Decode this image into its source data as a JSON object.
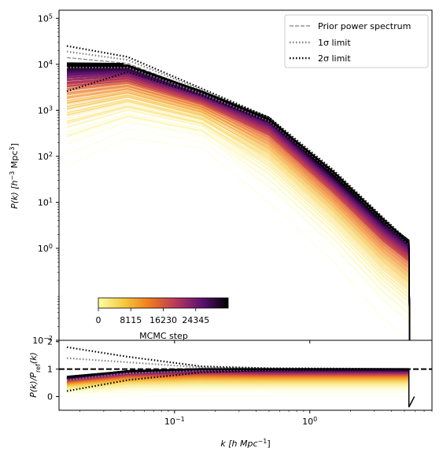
{
  "chart_data": [
    {
      "panel": "top",
      "type": "line",
      "ylabel_main": "P(k) [h",
      "ylabel_exp": "−3",
      "ylabel_tail": " Mpc",
      "ylabel_exp2": "3",
      "ylabel_close": "]",
      "yscale": "log",
      "xscale": "log",
      "xlim": [
        0.014,
        8.0
      ],
      "ylim": [
        0.01,
        150000
      ],
      "yticks": [
        {
          "value": 100000,
          "exp": "5"
        },
        {
          "value": 10000,
          "exp": "4"
        },
        {
          "value": 1000,
          "exp": "3"
        },
        {
          "value": 100,
          "exp": "2"
        },
        {
          "value": 10,
          "exp": "1"
        },
        {
          "value": 1,
          "exp": "0"
        },
        {
          "value": 0.01,
          "exp": "−2"
        }
      ],
      "k_grid": [
        0.016,
        0.045,
        0.16,
        0.5,
        1.5,
        3.5,
        5.4
      ],
      "samples_lo": [
        60,
        250,
        150,
        10,
        0.5,
        0.03,
        0.01
      ],
      "samples_hi": [
        9500,
        9300,
        2600,
        700,
        40,
        4,
        1.5
      ],
      "sample_count": 170,
      "series": [
        {
          "name": "Prior power spectrum",
          "style": "dashed",
          "color": "#808080",
          "x": [
            0.016,
            0.045,
            0.16,
            0.5,
            1.5,
            3.5,
            5.4
          ],
          "y": [
            14000,
            10500,
            2500,
            620,
            45,
            4.2,
            1.3
          ]
        },
        {
          "name": "1σ limit",
          "style": "dotted",
          "color": "#808080",
          "upper": [
            19000,
            12500,
            2750,
            660,
            47,
            4.4,
            1.35
          ],
          "lower": [
            8500,
            8500,
            2300,
            590,
            43,
            4.0,
            1.25
          ]
        },
        {
          "name": "2σ limit",
          "style": "dotted",
          "color": "#000000",
          "upper": [
            25000,
            14500,
            2950,
            700,
            50,
            4.6,
            1.4
          ],
          "lower": [
            2600,
            6800,
            2100,
            560,
            41,
            3.8,
            1.2
          ]
        },
        {
          "name": "",
          "style": "solid",
          "color": "#000000",
          "x": [
            0.016,
            0.045,
            0.16,
            0.5,
            1.5,
            3.5,
            5.4
          ],
          "y": [
            10000,
            9500,
            2550,
            630,
            45,
            4.2,
            1.3
          ]
        }
      ],
      "legend": {
        "placement": "top-right"
      },
      "colorbar": {
        "label": "MCMC step",
        "ticks": [
          "0",
          "8115",
          "16230",
          "24345"
        ],
        "max": 32460,
        "colormap": "inferno_r"
      }
    },
    {
      "panel": "bottom",
      "type": "line",
      "ylabel": "P(k)/P",
      "ylabel_sub": "ref",
      "ylabel_tail": "(k)",
      "xlabel": "k [h Mpc",
      "xlabel_exp": "−1",
      "xlabel_close": "]",
      "xlim": [
        0.014,
        8.0
      ],
      "ylim": [
        -0.5,
        2.05
      ],
      "yticks": [
        0,
        1,
        2
      ],
      "xticks": [
        {
          "value": 0.1,
          "exp": "−1"
        },
        {
          "value": 1,
          "exp": "0"
        }
      ],
      "ratio_samples_lo": [
        0.0,
        0.0,
        0.0,
        0.0,
        0.0,
        0.0,
        0.0
      ],
      "ratio_samples_hi": [
        0.7,
        0.95,
        1.02,
        1.0,
        1.0,
        1.0,
        1.0
      ],
      "reference_line": 1,
      "upper_2sigma": [
        1.8,
        1.45,
        1.1,
        1.03,
        1.02,
        1.01,
        1.0
      ],
      "upper_1sigma": [
        1.4,
        1.25,
        1.06,
        1.02,
        1.01,
        1.0,
        1.0
      ],
      "lower_1sigma": [
        0.6,
        0.85,
        0.95,
        0.98,
        0.99,
        1.0,
        1.0
      ],
      "lower_2sigma": [
        0.2,
        0.6,
        0.88,
        0.96,
        0.98,
        0.99,
        1.0
      ],
      "mean": [
        0.72,
        0.92,
        1.0,
        1.0,
        1.0,
        1.0,
        1.0
      ]
    }
  ]
}
